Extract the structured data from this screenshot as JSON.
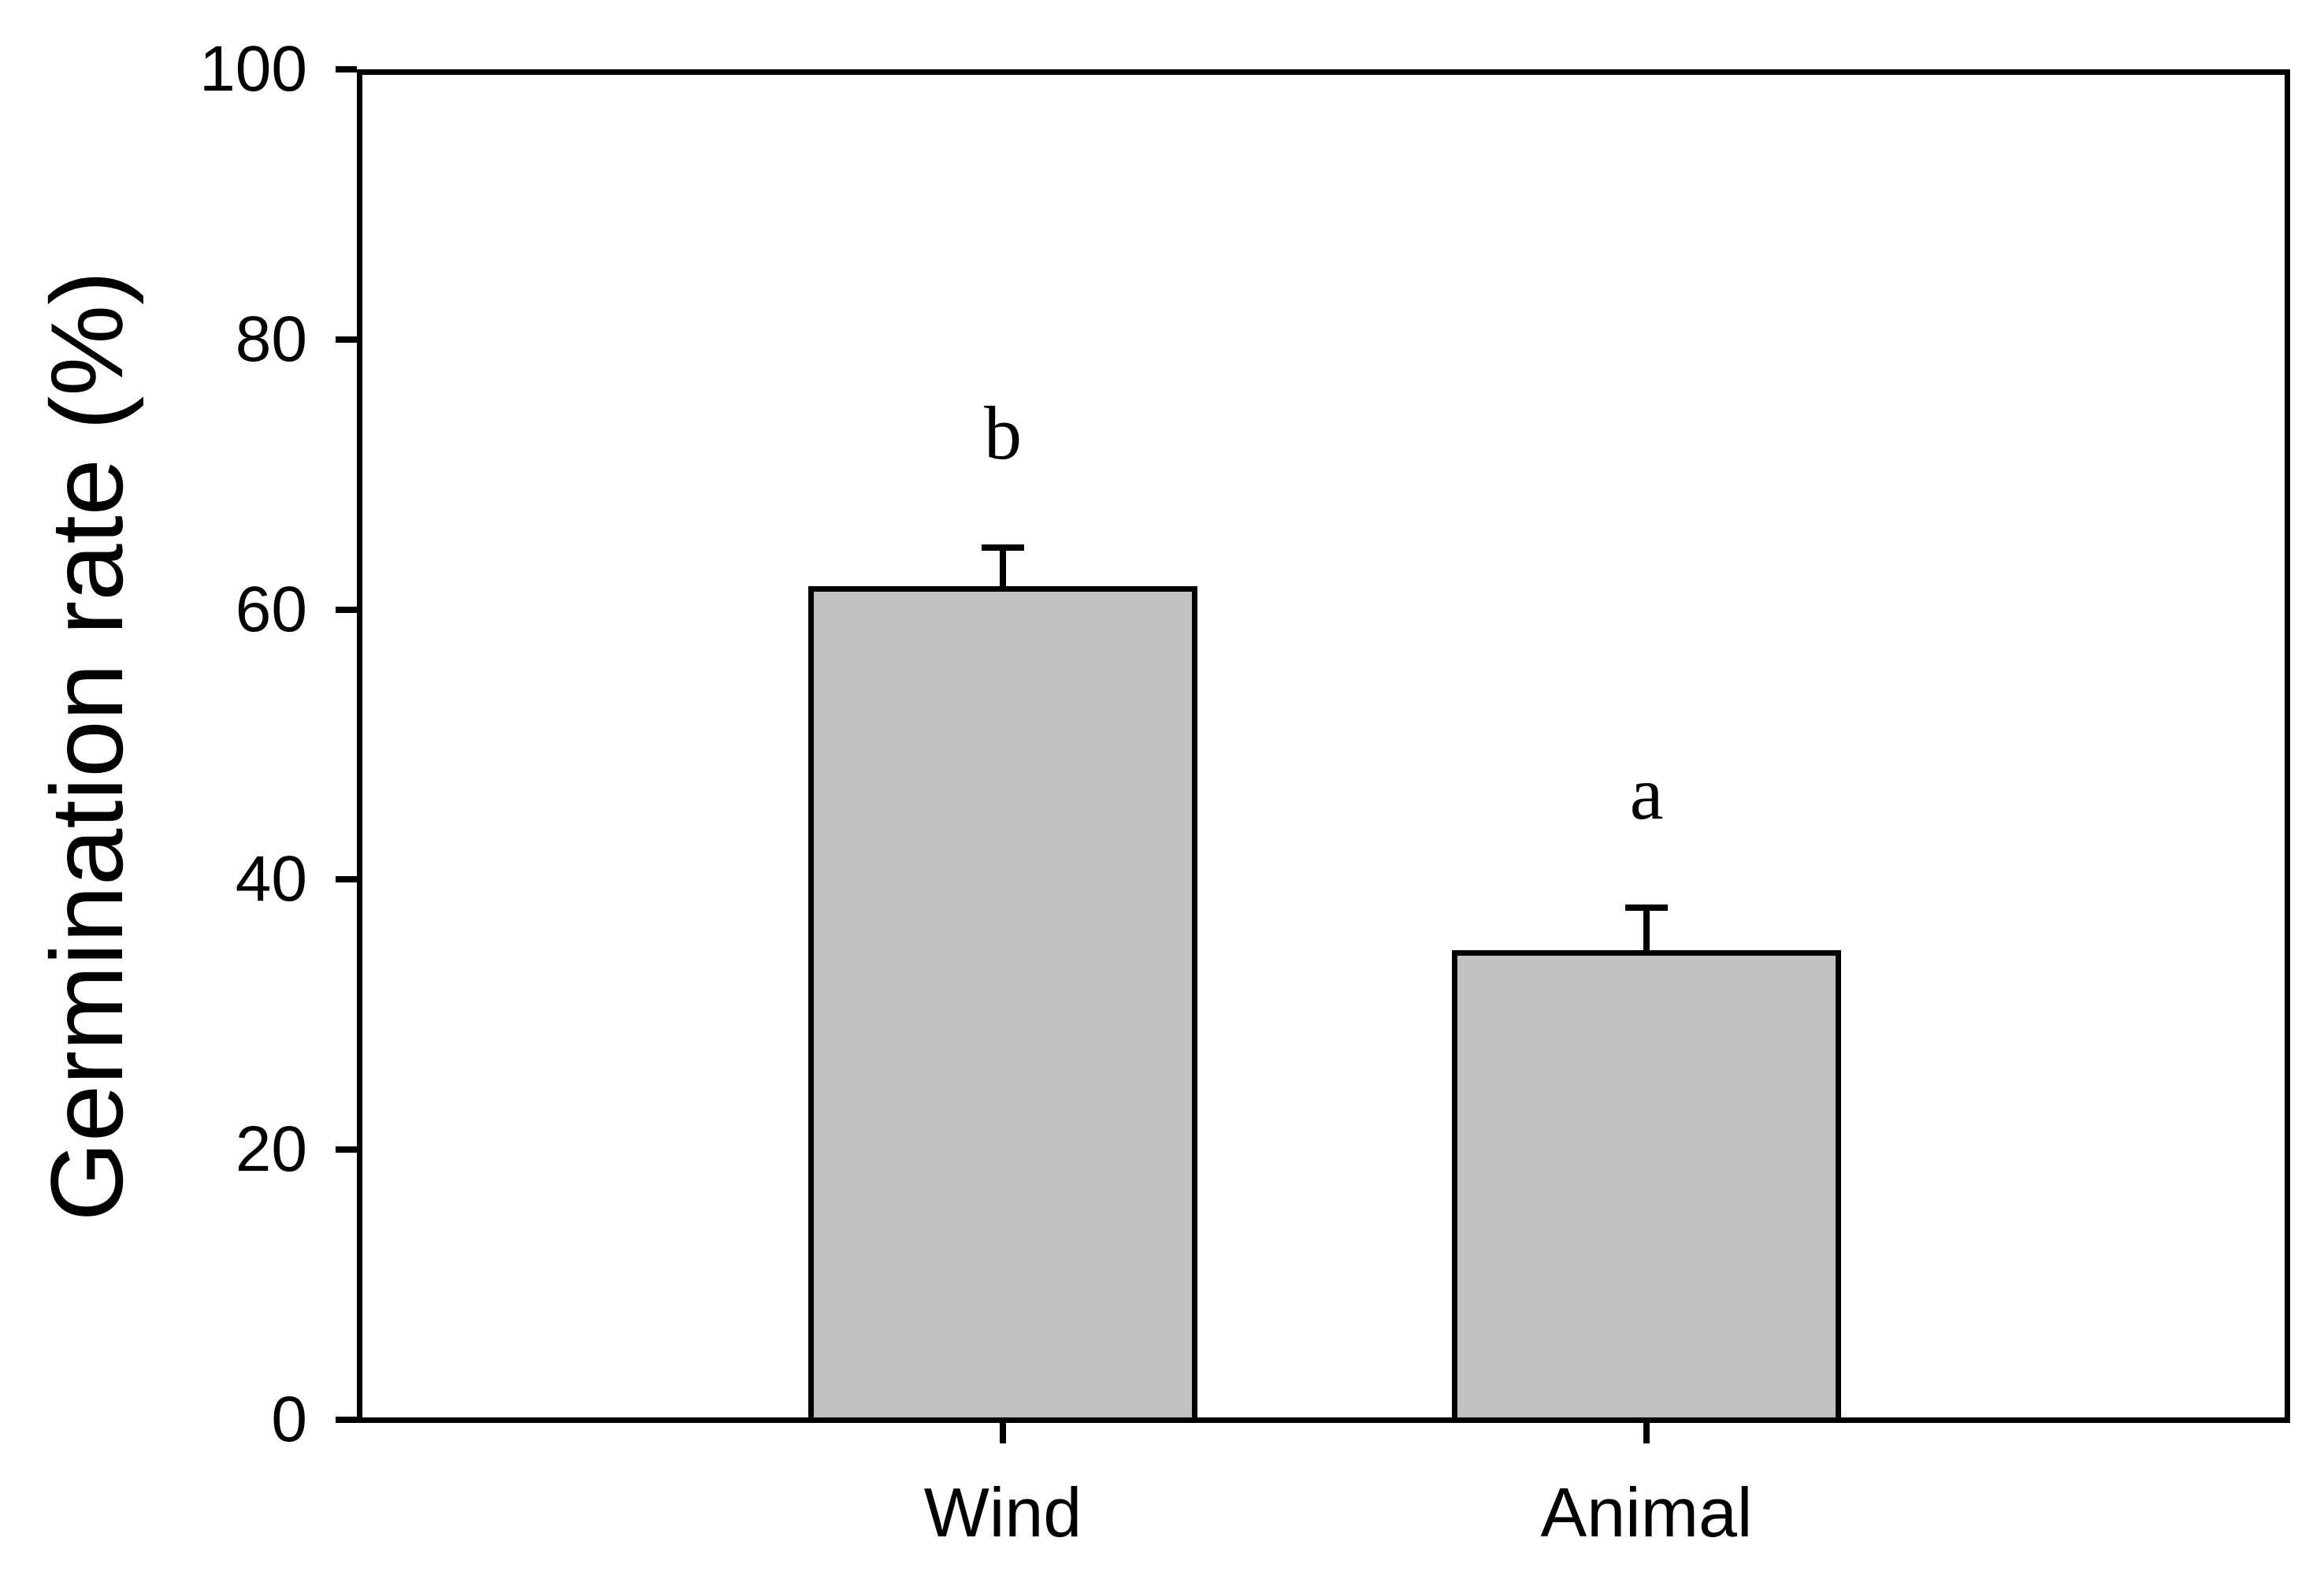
{
  "chart_data": {
    "type": "bar",
    "title": "",
    "categories": [
      "Wind",
      "Animal"
    ],
    "values": [
      61.7,
      34.8
    ],
    "errors": [
      2.9,
      3.1
    ],
    "error_direction": "up",
    "sig_labels": [
      "b",
      "a"
    ],
    "xlabel": "",
    "ylabel": "Germination rate (%)",
    "ylim": [
      0,
      100
    ],
    "yticks": [
      0,
      20,
      40,
      60,
      80,
      100
    ],
    "bar_fill": "#c1c1c1",
    "bar_outline": "#000000",
    "axis_color": "#000000",
    "background": "#ffffff",
    "grid": false,
    "frame": "full-box",
    "legend": "none"
  }
}
